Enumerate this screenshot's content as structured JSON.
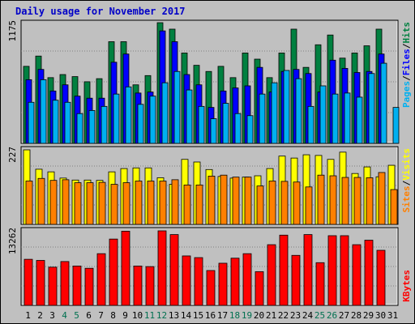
{
  "title": "Daily usage for November 2017",
  "colors": {
    "pages": "#00b0f0",
    "files": "#0000ff",
    "hits": "#008040",
    "sites": "#ff8000",
    "visits": "#ffff00",
    "kbytes": "#ff0000",
    "weekend_label": "#007050",
    "weekday_label": "#000000"
  },
  "chart_data": [
    {
      "type": "bar",
      "panel": "hits-files-pages",
      "ymax_label": "1175",
      "ylim": [
        0,
        1175
      ],
      "legend": {
        "pages": "Pages",
        "files": "Files",
        "hits": "Hits",
        "sep": "/"
      },
      "categories": [
        "1",
        "2",
        "3",
        "4",
        "5",
        "6",
        "7",
        "8",
        "9",
        "10",
        "11",
        "12",
        "13",
        "14",
        "15",
        "16",
        "17",
        "18",
        "19",
        "20",
        "21",
        "22",
        "23",
        "24",
        "25",
        "26",
        "27",
        "28",
        "29",
        "30",
        "31"
      ],
      "series": [
        {
          "name": "Hits",
          "values": [
            750,
            850,
            640,
            670,
            650,
            600,
            630,
            990,
            990,
            570,
            660,
            1175,
            1112,
            880,
            760,
            700,
            750,
            640,
            880,
            820,
            640,
            880,
            1112,
            740,
            960,
            1055,
            830,
            880,
            950,
            1112,
            0
          ]
        },
        {
          "name": "Files",
          "values": [
            620,
            720,
            510,
            570,
            460,
            440,
            440,
            790,
            870,
            490,
            500,
            1095,
            990,
            670,
            570,
            350,
            510,
            540,
            560,
            740,
            500,
            700,
            720,
            680,
            500,
            810,
            730,
            690,
            700,
            870,
            0
          ]
        },
        {
          "name": "Pages",
          "values": [
            400,
            620,
            420,
            400,
            290,
            320,
            360,
            480,
            550,
            380,
            460,
            590,
            700,
            520,
            360,
            240,
            390,
            290,
            270,
            480,
            590,
            710,
            630,
            360,
            560,
            480,
            490,
            450,
            680,
            780,
            350
          ]
        }
      ]
    },
    {
      "type": "bar",
      "panel": "visits-sites",
      "ymax_label": "227",
      "ylim": [
        0,
        227
      ],
      "legend": {
        "sites": "Sites",
        "visits": "Visits",
        "sep": "/"
      },
      "categories": [
        "1",
        "2",
        "3",
        "4",
        "5",
        "6",
        "7",
        "8",
        "9",
        "10",
        "11",
        "12",
        "13",
        "14",
        "15",
        "16",
        "17",
        "18",
        "19",
        "20",
        "21",
        "22",
        "23",
        "24",
        "25",
        "26",
        "27",
        "28",
        "29",
        "30",
        "31"
      ],
      "series": [
        {
          "name": "Visits",
          "values": [
            227,
            168,
            160,
            141,
            135,
            135,
            134,
            160,
            170,
            172,
            172,
            142,
            122,
            198,
            190,
            167,
            146,
            141,
            144,
            148,
            170,
            208,
            202,
            212,
            210,
            198,
            220,
            155,
            175,
            145,
            180
          ]
        },
        {
          "name": "Sites",
          "values": [
            132,
            140,
            134,
            136,
            127,
            127,
            128,
            122,
            127,
            132,
            132,
            132,
            136,
            120,
            120,
            147,
            150,
            144,
            144,
            117,
            132,
            131,
            129,
            114,
            150,
            148,
            143,
            143,
            142,
            158,
            106
          ]
        }
      ]
    },
    {
      "type": "bar",
      "panel": "kbytes",
      "ymax_label": "13262",
      "ylim": [
        0,
        13262
      ],
      "legend": {
        "kbytes": "KBytes"
      },
      "categories": [
        "1",
        "2",
        "3",
        "4",
        "5",
        "6",
        "7",
        "8",
        "9",
        "10",
        "11",
        "12",
        "13",
        "14",
        "15",
        "16",
        "17",
        "18",
        "19",
        "20",
        "21",
        "22",
        "23",
        "24",
        "25",
        "26",
        "27",
        "28",
        "29",
        "30",
        "31"
      ],
      "series": [
        {
          "name": "KBytes",
          "values": [
            8200,
            8000,
            6800,
            7800,
            7000,
            6600,
            9200,
            11800,
            13200,
            7000,
            6900,
            13262,
            12600,
            8800,
            8500,
            6200,
            7500,
            8400,
            9200,
            6000,
            10800,
            12500,
            8900,
            12600,
            7600,
            12400,
            12400,
            10800,
            11600,
            9800,
            0
          ]
        }
      ]
    }
  ],
  "weekend_days": [
    "4",
    "5",
    "11",
    "12",
    "18",
    "19",
    "25",
    "26"
  ]
}
